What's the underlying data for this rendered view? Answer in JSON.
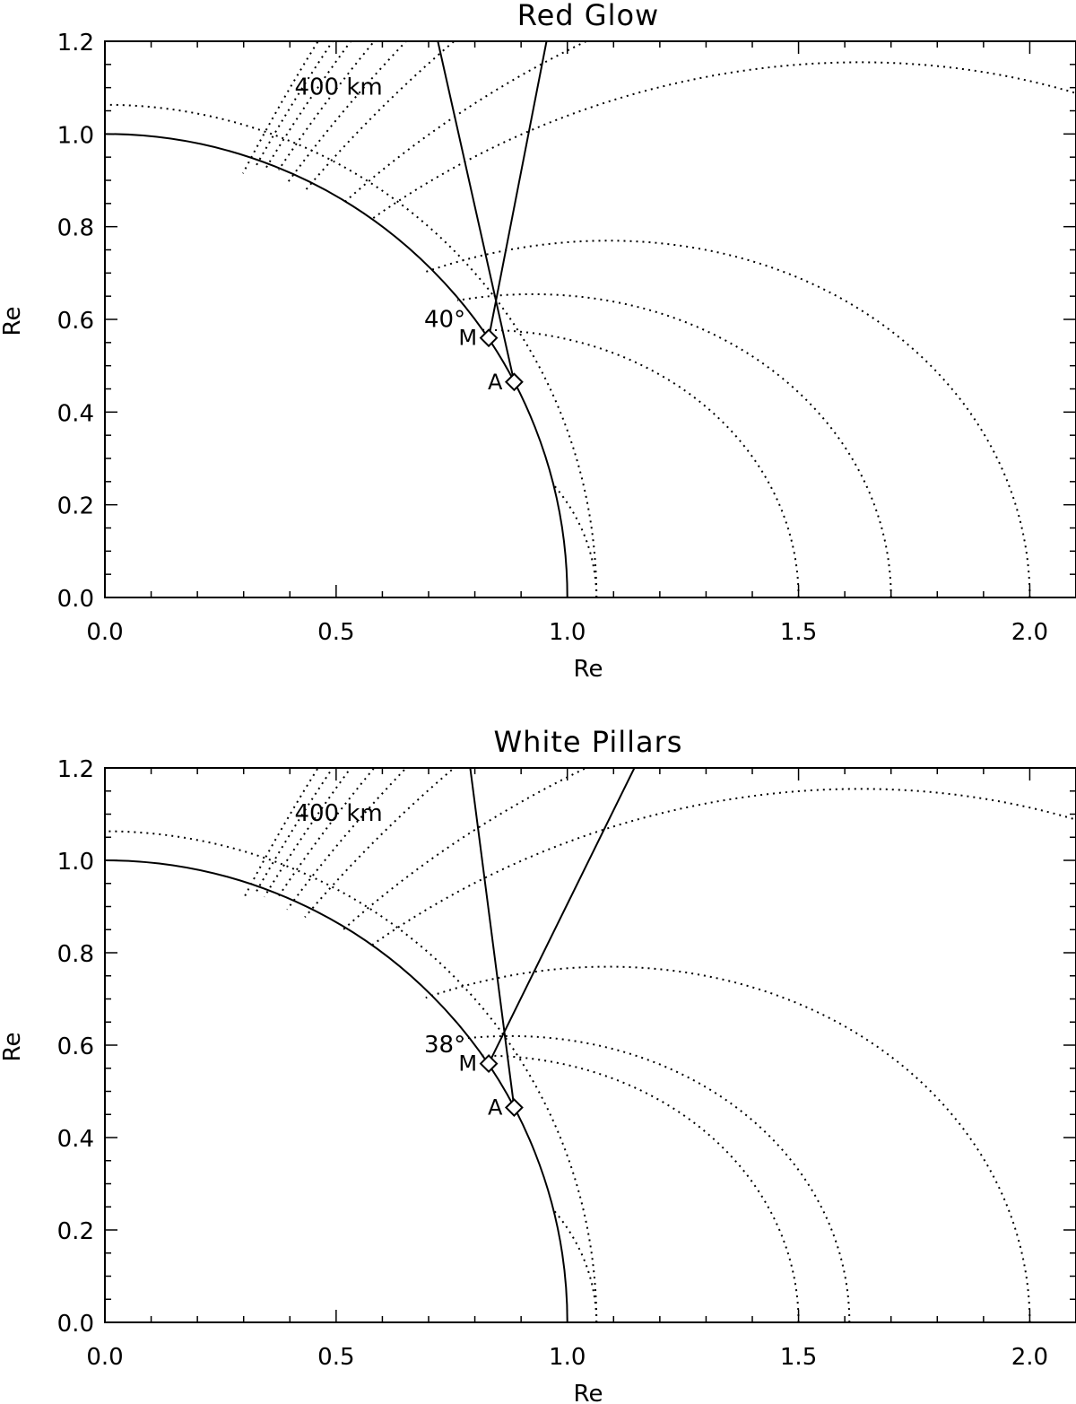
{
  "chart_data": [
    {
      "type": "line",
      "title": "Red Glow",
      "xlabel": "Re",
      "ylabel": "Re",
      "xlim": [
        0.0,
        2.1
      ],
      "ylim": [
        0.0,
        1.2
      ],
      "x_ticks": [
        "0.0",
        "0.5",
        "1.0",
        "1.5",
        "2.0"
      ],
      "y_ticks": [
        "0.0",
        "0.2",
        "0.4",
        "0.6",
        "0.8",
        "1.0",
        "1.2"
      ],
      "earth_radius": 1.0,
      "altitude_shell": {
        "label": "400 km",
        "radius": 1.063
      },
      "field_lines_L": [
        1.063,
        1.5,
        1.7,
        2.0,
        3.0,
        3.7,
        5.0,
        6.0,
        7.0,
        8.0,
        9.0,
        10.0
      ],
      "stations": [
        {
          "label": "M",
          "x": 0.83,
          "y": 0.56
        },
        {
          "label": "A",
          "x": 0.885,
          "y": 0.465
        }
      ],
      "sight_lines": [
        {
          "from": "M",
          "to": [
            0.955,
            1.2
          ]
        },
        {
          "from": "A",
          "to": [
            0.72,
            1.2
          ]
        }
      ],
      "annotation": "40°",
      "grid": false
    },
    {
      "type": "line",
      "title": "White Pillars",
      "xlabel": "Re",
      "ylabel": "Re",
      "xlim": [
        0.0,
        2.1
      ],
      "ylim": [
        0.0,
        1.2
      ],
      "x_ticks": [
        "0.0",
        "0.5",
        "1.0",
        "1.5",
        "2.0"
      ],
      "y_ticks": [
        "0.0",
        "0.2",
        "0.4",
        "0.6",
        "0.8",
        "1.0",
        "1.2"
      ],
      "earth_radius": 1.0,
      "altitude_shell": {
        "label": "400 km",
        "radius": 1.063
      },
      "field_lines_L": [
        1.063,
        1.5,
        1.61,
        2.0,
        3.0,
        3.7,
        5.0,
        6.0,
        7.0,
        8.0,
        9.0,
        10.0
      ],
      "stations": [
        {
          "label": "M",
          "x": 0.83,
          "y": 0.56
        },
        {
          "label": "A",
          "x": 0.885,
          "y": 0.465
        }
      ],
      "sight_lines": [
        {
          "from": "M",
          "to": [
            1.145,
            1.2
          ]
        },
        {
          "from": "A",
          "to": [
            0.79,
            1.2
          ]
        }
      ],
      "annotation": "38°",
      "grid": false
    }
  ]
}
